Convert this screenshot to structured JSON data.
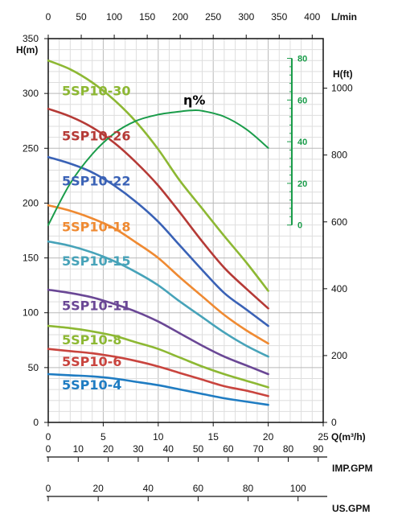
{
  "chart_data": {
    "type": "line",
    "title": "",
    "x": [
      0,
      2,
      4,
      6,
      8,
      10,
      12,
      14,
      16,
      18,
      20
    ],
    "xlim": [
      0,
      25
    ],
    "ylim": [
      0,
      350
    ],
    "xlabel": "Q(m³/h)",
    "ylabel": "H(m)",
    "x_ticks": [
      "0",
      "5",
      "10",
      "15",
      "20",
      "25"
    ],
    "y_ticks": [
      "0",
      "50",
      "100",
      "150",
      "200",
      "250",
      "300",
      "350"
    ],
    "grid": true,
    "top_axis": {
      "label": "L/min",
      "ticks": [
        "0",
        "50",
        "100",
        "150",
        "200",
        "250",
        "300",
        "350",
        "400"
      ],
      "range": [
        0,
        416.67
      ]
    },
    "right_axis": {
      "label": "H(ft)",
      "ticks": [
        "0",
        "200",
        "400",
        "600",
        "800",
        "1000"
      ],
      "range": [
        0,
        1148.3
      ]
    },
    "efficiency_axis": {
      "label": "η%",
      "ticks": [
        "0",
        "20",
        "40",
        "60",
        "80"
      ],
      "range": [
        0,
        80
      ],
      "h_range": [
        180,
        332
      ],
      "color": "#1a9c4a"
    },
    "bottom_axes": [
      {
        "label": "IMP.GPM",
        "ticks": [
          "0",
          "10",
          "20",
          "30",
          "40",
          "50",
          "60",
          "70",
          "80",
          "90"
        ],
        "range": [
          0,
          91.66
        ]
      },
      {
        "label": "US.GPM",
        "ticks": [
          "0",
          "20",
          "40",
          "60",
          "80",
          "100"
        ],
        "range": [
          0,
          110.07
        ]
      }
    ],
    "series": [
      {
        "name": "5SP10-30",
        "color": "#8db833",
        "values": [
          330,
          322,
          310,
          294,
          274,
          249,
          220,
          195,
          170,
          146,
          120
        ]
      },
      {
        "name": "5SP10-26",
        "color": "#b53a36",
        "values": [
          286,
          279,
          269,
          255,
          237,
          216,
          191,
          165,
          141,
          122,
          104
        ]
      },
      {
        "name": "5SP10-22",
        "color": "#3a62b6",
        "values": [
          242,
          236,
          228,
          216,
          201,
          183,
          161,
          139,
          118,
          103,
          88
        ]
      },
      {
        "name": "5SP10-18",
        "color": "#ef8a32",
        "values": [
          198,
          193,
          186,
          177,
          164,
          150,
          132,
          115,
          98,
          84,
          72
        ]
      },
      {
        "name": "5SP10-15",
        "color": "#47a3b9",
        "values": [
          165,
          161,
          155,
          147,
          137,
          125,
          110,
          96,
          82,
          70,
          60
        ]
      },
      {
        "name": "5SP10-11",
        "color": "#6a4795",
        "values": [
          121,
          118,
          114,
          108,
          101,
          92,
          81,
          70,
          60,
          52,
          44
        ]
      },
      {
        "name": "5SP10-8",
        "color": "#8db833",
        "values": [
          88,
          86,
          83,
          79,
          73,
          67,
          59,
          51,
          44,
          38,
          32
        ]
      },
      {
        "name": "5SP10-6",
        "color": "#c9443e",
        "values": [
          67,
          65,
          63,
          60,
          56,
          51,
          45,
          39,
          33,
          29,
          24
        ]
      },
      {
        "name": "5SP10-4",
        "color": "#1f7cc2",
        "values": [
          44,
          43,
          42,
          40,
          37,
          34,
          30,
          26,
          22,
          19,
          16
        ]
      }
    ],
    "efficiency": {
      "name": "η%",
      "color": "#1a9c4a",
      "x": [
        0,
        2,
        4,
        6,
        8,
        10,
        12,
        13,
        14,
        16,
        18,
        20
      ],
      "values": [
        0,
        20,
        34,
        44,
        50,
        53,
        54.5,
        55,
        54.8,
        52,
        46,
        37
      ]
    }
  }
}
